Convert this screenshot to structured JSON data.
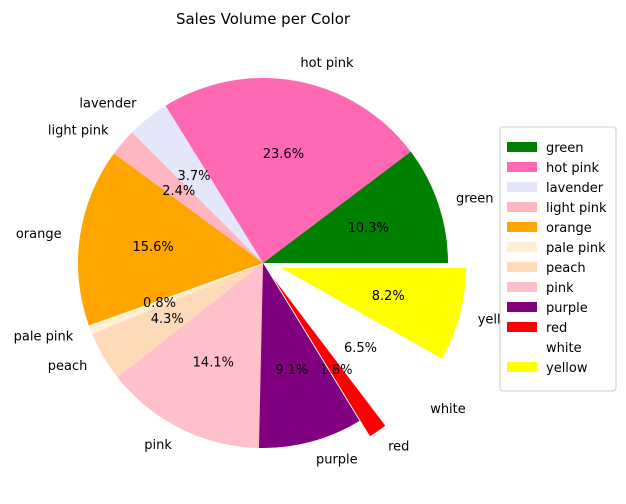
{
  "chart_data": {
    "type": "pie",
    "title": "Sales Volume per Color",
    "slices": [
      {
        "label": "green",
        "pct_label": "10.3%",
        "value": 10.3,
        "color": "#008000",
        "explode": 0
      },
      {
        "label": "hot pink",
        "pct_label": "23.6%",
        "value": 23.6,
        "color": "#ff69b4",
        "explode": 0
      },
      {
        "label": "lavender",
        "pct_label": "3.7%",
        "value": 3.7,
        "color": "#e6e6fa",
        "explode": 0
      },
      {
        "label": "light pink",
        "pct_label": "2.4%",
        "value": 2.4,
        "color": "#ffb6c1",
        "explode": 0
      },
      {
        "label": "orange",
        "pct_label": "15.6%",
        "value": 15.6,
        "color": "#ffa500",
        "explode": 0
      },
      {
        "label": "pale pink",
        "pct_label": "0.8%",
        "value": 0.8,
        "color": "#ffefd5",
        "explode": 0
      },
      {
        "label": "peach",
        "pct_label": "4.3%",
        "value": 4.3,
        "color": "#ffdab9",
        "explode": 0
      },
      {
        "label": "pink",
        "pct_label": "14.1%",
        "value": 14.1,
        "color": "#ffc0cb",
        "explode": 0
      },
      {
        "label": "purple",
        "pct_label": "9.1%",
        "value": 9.1,
        "color": "#800080",
        "explode": 0
      },
      {
        "label": "red",
        "pct_label": "1.6%",
        "value": 1.6,
        "color": "#ff0000",
        "explode": 0.1
      },
      {
        "label": "white",
        "pct_label": "6.5%",
        "value": 6.5,
        "color": "#ffffff",
        "explode": 0.1
      },
      {
        "label": "yellow",
        "pct_label": "8.2%",
        "value": 8.2,
        "color": "#ffff00",
        "explode": 0.1
      }
    ],
    "start_angle_deg": 0,
    "direction": "counterclockwise",
    "legend_position": "right"
  }
}
